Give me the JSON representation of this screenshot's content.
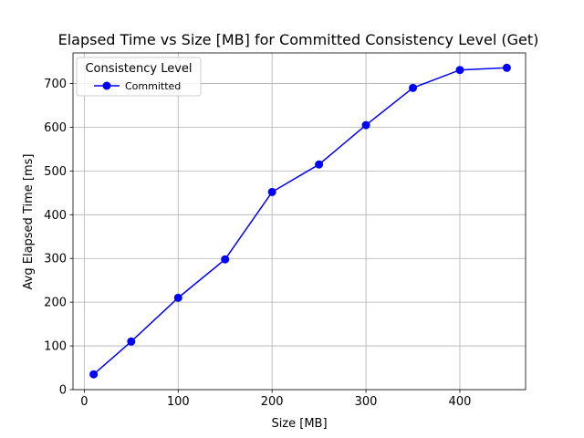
{
  "chart_data": {
    "type": "line",
    "title": "Elapsed Time vs Size [MB] for Committed Consistency Level (Get)",
    "xlabel": "Size [MB]",
    "ylabel": "Avg Elapsed Time [ms]",
    "xlim": [
      -12,
      470
    ],
    "ylim": [
      0,
      770
    ],
    "xticks": [
      0,
      100,
      200,
      300,
      400
    ],
    "yticks": [
      0,
      100,
      200,
      300,
      400,
      500,
      600,
      700
    ],
    "grid": true,
    "legend": {
      "title": "Consistency Level",
      "placement": "top-left"
    },
    "series": [
      {
        "name": "Committed",
        "color": "#0000ff",
        "marker": "circle",
        "x": [
          10,
          50,
          100,
          150,
          200,
          250,
          300,
          350,
          400,
          450
        ],
        "y": [
          35,
          110,
          210,
          298,
          452,
          515,
          605,
          690,
          731,
          736
        ]
      }
    ]
  }
}
